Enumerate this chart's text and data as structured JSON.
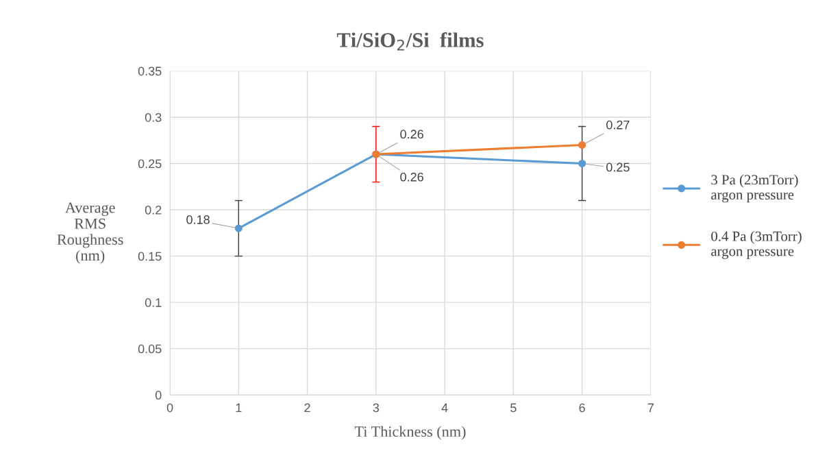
{
  "chart_data": {
    "type": "line",
    "title": "Ti/SiO$_{2}$/Si  films",
    "xlabel": "Ti Thickness (nm)",
    "ylabel": "Average\nRMS\nRoughness\n(nm)",
    "series": [
      {
        "name": "3 Pa (23mTorr)\nargon pressure",
        "color": "#5b9bd5",
        "x": [
          1,
          3,
          6
        ],
        "values": [
          0.18,
          0.26,
          0.25
        ],
        "errors": [
          0.03,
          null,
          0.04
        ]
      },
      {
        "name": "0.4 Pa (3mTorr)\nargon pressure",
        "color": "#ed7d31",
        "x": [
          3,
          6
        ],
        "values": [
          0.26,
          0.27
        ],
        "errors": [
          0.03,
          null
        ]
      }
    ],
    "xlim": [
      0,
      7
    ],
    "xticks": [
      0,
      1,
      2,
      3,
      4,
      5,
      6,
      7
    ],
    "ylim": [
      0,
      0.35
    ],
    "yticks": [
      0,
      0.05,
      0.1,
      0.15,
      0.2,
      0.25,
      0.3,
      0.35
    ],
    "grid": true,
    "legend": "right",
    "marker": "circle",
    "line_style": "solid",
    "data_labels": true
  }
}
